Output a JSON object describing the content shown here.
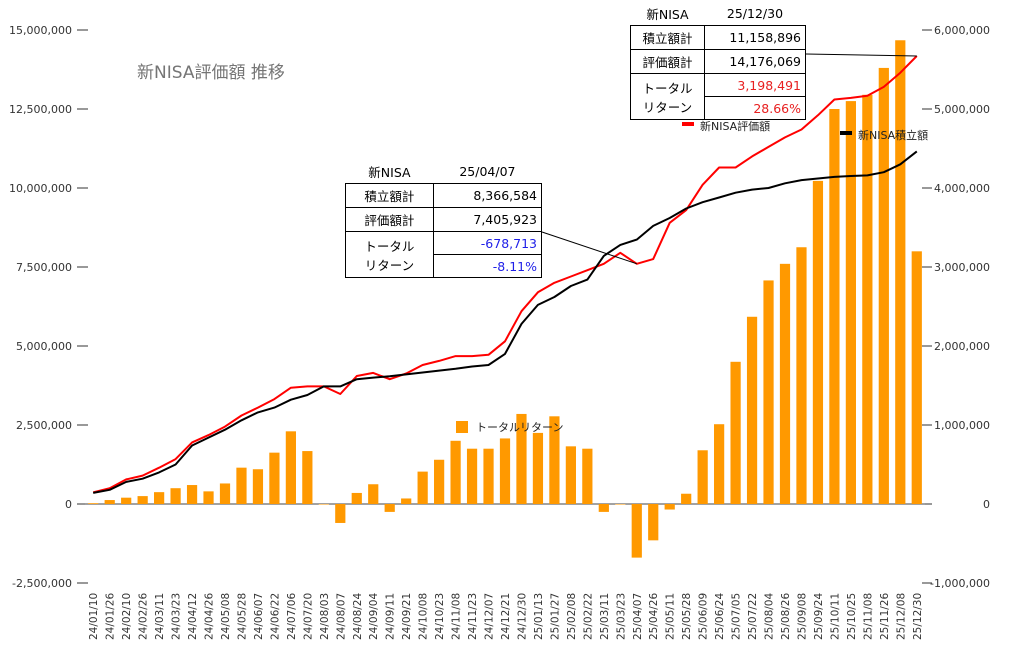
{
  "title": "新NISA評価額 推移",
  "colors": {
    "valuation": "#ff0000",
    "invested": "#000000",
    "return": "#ff9900",
    "axis": "#333333",
    "grid": "#cccccc",
    "negative": "#1f1fe8",
    "positive": "#e82020"
  },
  "annotations": [
    {
      "header_left": "新NISA",
      "header_right": "25/04/07",
      "row1_label": "積立額計",
      "row1_value": "8,366,584",
      "row2_label": "評価額計",
      "row2_value": "7,405,923",
      "row3_label": "トータル",
      "row3_label2": "リターン",
      "row3_value": "-678,713",
      "row4_value": "-8.11%"
    },
    {
      "header_left": "新NISA",
      "header_right": "25/12/30",
      "row1_label": "積立額計",
      "row1_value": "11,158,896",
      "row2_label": "評価額計",
      "row2_value": "14,176,069",
      "row3_label": "トータル",
      "row3_label2": "リターン",
      "row3_value": "3,198,491",
      "row4_value": "28.66%"
    }
  ],
  "chart_data": {
    "type": "combo",
    "title": "新NISA評価額 推移",
    "categories": [
      "24/01/10",
      "24/01/26",
      "24/02/10",
      "24/02/26",
      "24/03/11",
      "24/03/23",
      "24/04/12",
      "24/04/26",
      "24/05/08",
      "24/05/28",
      "24/06/07",
      "24/06/22",
      "24/07/06",
      "24/07/20",
      "24/08/03",
      "24/08/07",
      "24/08/24",
      "24/09/04",
      "24/09/11",
      "24/09/21",
      "24/10/08",
      "24/10/23",
      "24/11/08",
      "24/11/23",
      "24/12/07",
      "24/12/21",
      "24/12/30",
      "25/01/13",
      "25/01/27",
      "25/02/08",
      "25/02/22",
      "25/03/11",
      "25/03/23",
      "25/04/07",
      "25/04/26",
      "25/05/11",
      "25/05/28",
      "25/06/09",
      "25/06/24",
      "25/07/05",
      "25/07/22",
      "25/08/04",
      "25/08/26",
      "25/09/08",
      "25/09/24",
      "25/10/11",
      "25/10/25",
      "25/11/08",
      "25/11/26",
      "25/12/08",
      "25/12/30"
    ],
    "left_axis": {
      "min": -2500000,
      "max": 15000000,
      "ticks": [
        "-2,500,000",
        "0",
        "2,500,000",
        "5,000,000",
        "7,500,000",
        "10,000,000",
        "12,500,000",
        "15,000,000"
      ]
    },
    "right_axis": {
      "min": -1000000,
      "max": 6000000,
      "ticks": [
        "-1,000,000",
        "0",
        "1,000,000",
        "2,000,000",
        "3,000,000",
        "4,000,000",
        "5,000,000",
        "6,000,000"
      ]
    },
    "series": [
      {
        "name": "新NISA評価額",
        "type": "line",
        "axis": "left",
        "values": [
          370000,
          500000,
          780000,
          900000,
          1150000,
          1420000,
          1950000,
          2180000,
          2450000,
          2800000,
          3050000,
          3320000,
          3680000,
          3720000,
          3720000,
          3480000,
          4050000,
          4150000,
          3950000,
          4130000,
          4400000,
          4530000,
          4680000,
          4680000,
          4720000,
          5150000,
          6100000,
          6700000,
          7000000,
          7200000,
          7400000,
          7600000,
          7950000,
          7600000,
          7750000,
          8900000,
          9300000,
          10100000,
          10650000,
          10650000,
          11000000,
          11300000,
          11600000,
          11850000,
          12300000,
          12800000,
          12850000,
          12920000,
          13200000,
          13650000,
          14176069
        ]
      },
      {
        "name": "新NISA積立額",
        "type": "line",
        "axis": "left",
        "values": [
          350000,
          450000,
          700000,
          800000,
          1000000,
          1250000,
          1850000,
          2100000,
          2350000,
          2650000,
          2900000,
          3050000,
          3300000,
          3450000,
          3720000,
          3720000,
          3950000,
          4000000,
          4040000,
          4100000,
          4160000,
          4220000,
          4280000,
          4350000,
          4400000,
          4750000,
          5700000,
          6300000,
          6550000,
          6900000,
          7100000,
          7850000,
          8200000,
          8366584,
          8800000,
          9050000,
          9350000,
          9550000,
          9700000,
          9850000,
          9950000,
          10000000,
          10150000,
          10250000,
          10300000,
          10350000,
          10380000,
          10400000,
          10500000,
          10750000,
          11158896
        ]
      },
      {
        "name": "トータルリターン",
        "type": "bar",
        "axis": "right",
        "values": [
          10000,
          50000,
          80000,
          100000,
          150000,
          200000,
          240000,
          160000,
          260000,
          460000,
          440000,
          650000,
          920000,
          670000,
          0,
          -240000,
          140000,
          250000,
          -100000,
          70000,
          410000,
          560000,
          800000,
          700000,
          700000,
          830000,
          1140000,
          900000,
          1110000,
          730000,
          700000,
          -100000,
          0,
          -678713,
          -460000,
          -70000,
          130000,
          680000,
          1010000,
          1800000,
          2370000,
          2830000,
          3040000,
          3250000,
          4090000,
          5000000,
          5100000,
          5180000,
          5520000,
          5870000,
          3198491
        ]
      }
    ],
    "legend": [
      "新NISA評価額",
      "新NISA積立額",
      "トータルリターン"
    ]
  }
}
